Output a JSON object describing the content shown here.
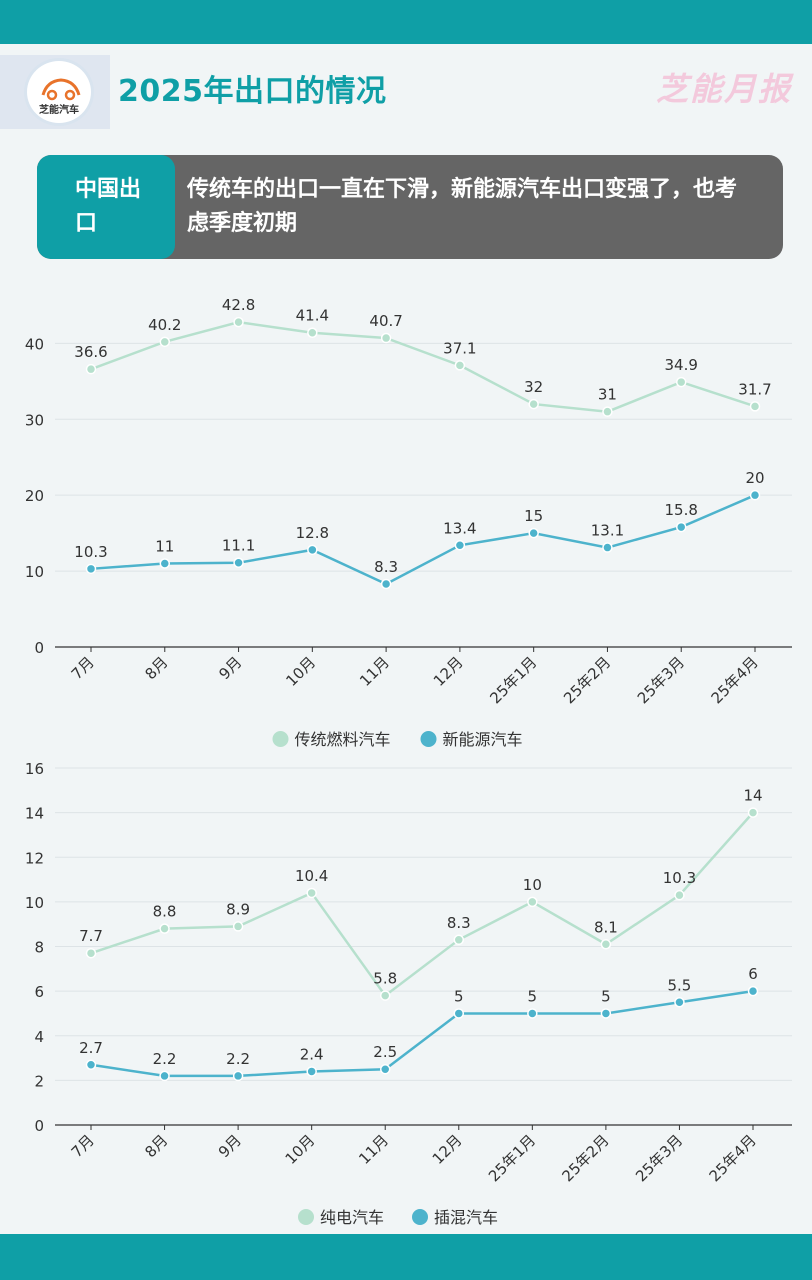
{
  "header": {
    "logo_text": "芝能汽车",
    "title": "2025年出口的情况",
    "brand": "芝能月报"
  },
  "banner": {
    "tag": "中国出口",
    "text": "传统车的出口一直在下滑，新能源汽车出口变强了，也考虑季度初期"
  },
  "colors": {
    "accent": "#0f9fa6",
    "series_light": "#b6e0cd",
    "series_dark": "#4db3cc"
  },
  "chart_data": [
    {
      "type": "line",
      "x": [
        "7月",
        "8月",
        "9月",
        "10月",
        "11月",
        "12月",
        "25年1月",
        "25年2月",
        "25年3月",
        "25年4月"
      ],
      "ylim": [
        0,
        44
      ],
      "yticks": [
        0,
        10,
        20,
        30,
        40
      ],
      "grid": true,
      "legend": "bottom-center",
      "series": [
        {
          "name": "传统燃料汽车",
          "color": "#b6e0cd",
          "values": [
            36.6,
            40.2,
            42.8,
            41.4,
            40.7,
            37.1,
            32,
            31,
            34.9,
            31.7
          ]
        },
        {
          "name": "新能源汽车",
          "color": "#4db3cc",
          "values": [
            10.3,
            11,
            11.1,
            12.8,
            8.3,
            13.4,
            15,
            13.1,
            15.8,
            20
          ]
        }
      ]
    },
    {
      "type": "line",
      "x": [
        "7月",
        "8月",
        "9月",
        "10月",
        "11月",
        "12月",
        "25年1月",
        "25年2月",
        "25年3月",
        "25年4月"
      ],
      "ylim": [
        0,
        16
      ],
      "yticks": [
        0,
        2,
        4,
        6,
        8,
        10,
        12,
        14,
        16
      ],
      "grid": true,
      "legend": "bottom-center",
      "series": [
        {
          "name": "纯电汽车",
          "color": "#b6e0cd",
          "values": [
            7.7,
            8.8,
            8.9,
            10.4,
            5.8,
            8.3,
            10,
            8.1,
            10.3,
            14
          ]
        },
        {
          "name": "插混汽车",
          "color": "#4db3cc",
          "values": [
            2.7,
            2.2,
            2.2,
            2.4,
            2.5,
            5,
            5,
            5,
            5.5,
            6
          ]
        }
      ]
    }
  ]
}
